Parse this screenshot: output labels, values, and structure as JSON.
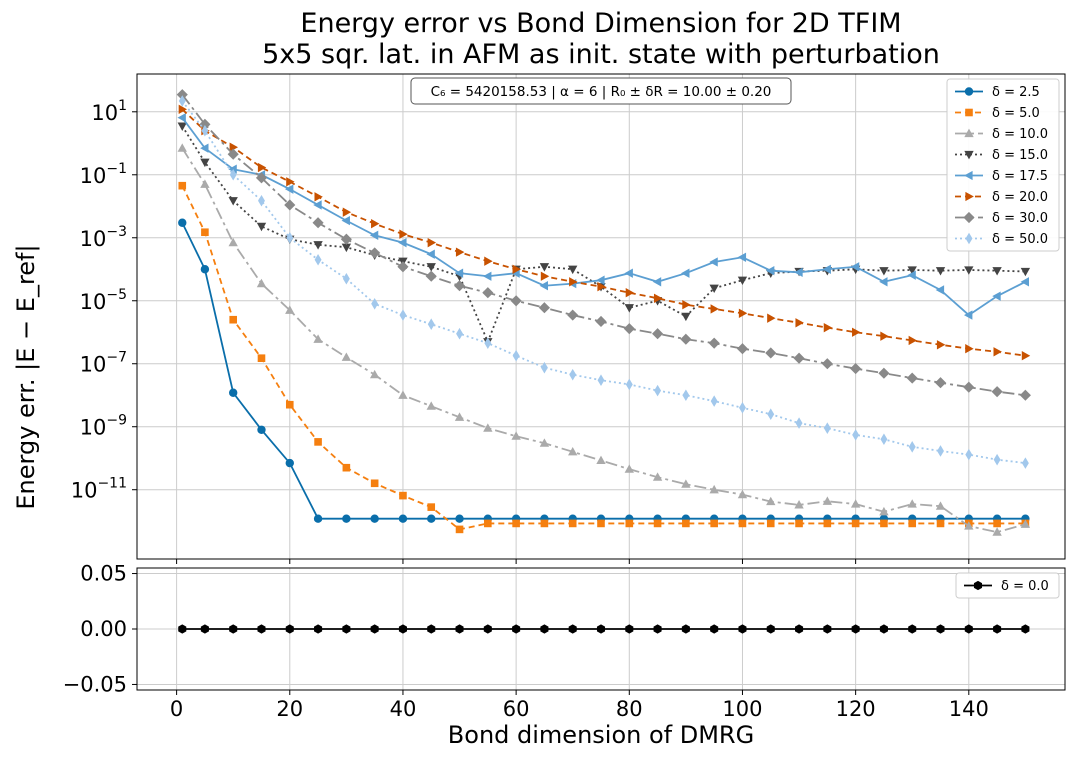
{
  "chart_data": {
    "type": "line",
    "title_lines": [
      "Energy error vs Bond Dimension for 2D TFIM",
      "5x5 sqr. lat. in AFM as init. state with perturbation"
    ],
    "xlabel": "Bond dimension of DMRG",
    "ylabel": "Energy err. |E − E_ref|",
    "annotation": "C₆ = 5420158.53 | α = 6 | R₀ ± δR = 10.00 ± 0.20",
    "x_ticks": [
      "0",
      "20",
      "40",
      "60",
      "80",
      "100",
      "120",
      "140"
    ],
    "xlim": [
      -7,
      157
    ],
    "grid": true,
    "legend_position": "top-right",
    "top_panel": {
      "yscale": "log",
      "ylim_log10": [
        -13.2,
        2.2
      ],
      "y_ticks": [
        {
          "exp": 1,
          "label": "10",
          "sup": "1"
        },
        {
          "exp": -1,
          "label": "10",
          "sup": "−1"
        },
        {
          "exp": -3,
          "label": "10",
          "sup": "−3"
        },
        {
          "exp": -5,
          "label": "10",
          "sup": "−5"
        },
        {
          "exp": -7,
          "label": "10",
          "sup": "−7"
        },
        {
          "exp": -9,
          "label": "10",
          "sup": "−9"
        },
        {
          "exp": -11,
          "label": "10",
          "sup": "−11"
        }
      ],
      "x": [
        1,
        5,
        10,
        15,
        20,
        25,
        30,
        35,
        40,
        45,
        50,
        55,
        60,
        65,
        70,
        75,
        80,
        85,
        90,
        95,
        100,
        105,
        110,
        115,
        120,
        125,
        130,
        135,
        140,
        145,
        150
      ],
      "series": [
        {
          "name": "δ = 2.5",
          "color": "#0a6eaa",
          "dash": "",
          "marker": "circle",
          "values": [
            0.003,
            0.0001,
            1.2e-08,
            8e-10,
            7e-11,
            1.2e-12,
            1.2e-12,
            1.2e-12,
            1.2e-12,
            1.2e-12,
            1.2e-12,
            1.2e-12,
            1.2e-12,
            1.2e-12,
            1.2e-12,
            1.2e-12,
            1.2e-12,
            1.2e-12,
            1.2e-12,
            1.2e-12,
            1.2e-12,
            1.2e-12,
            1.2e-12,
            1.2e-12,
            1.2e-12,
            1.2e-12,
            1.2e-12,
            1.2e-12,
            1.2e-12,
            1.2e-12,
            1.2e-12
          ]
        },
        {
          "name": "δ = 5.0",
          "color": "#f57f0f",
          "dash": "6,4",
          "marker": "square",
          "values": [
            0.045,
            0.0015,
            2.5e-06,
            1.5e-07,
            5e-09,
            3.3e-10,
            5e-11,
            1.6e-11,
            6.5e-12,
            2.8e-12,
            5.5e-13,
            8.5e-13,
            8.5e-13,
            8.5e-13,
            8.5e-13,
            8.5e-13,
            8.5e-13,
            8.5e-13,
            8.5e-13,
            8.5e-13,
            8.5e-13,
            8.5e-13,
            8.5e-13,
            8.5e-13,
            8.5e-13,
            8.5e-13,
            8.5e-13,
            8.5e-13,
            8.5e-13,
            8.5e-13,
            8.5e-13
          ]
        },
        {
          "name": "δ = 10.0",
          "color": "#aaaaaa",
          "dash": "12,4,3,4",
          "marker": "triangle-up",
          "values": [
            0.7,
            0.05,
            0.0007,
            3.5e-05,
            5e-06,
            6e-07,
            1.6e-07,
            4.5e-08,
            1e-08,
            4.5e-09,
            2e-09,
            9e-10,
            5e-10,
            3e-10,
            1.6e-10,
            8.5e-11,
            4.5e-11,
            2.5e-11,
            1.5e-11,
            1e-11,
            7e-12,
            4.2e-12,
            3.3e-12,
            4.3e-12,
            3.5e-12,
            2e-12,
            3.5e-12,
            3e-12,
            7e-13,
            4.5e-13,
            8e-13
          ]
        },
        {
          "name": "δ = 15.0",
          "color": "#444444",
          "dash": "2,3",
          "marker": "triangle-down",
          "values": [
            3.5,
            0.25,
            0.015,
            0.0023,
            0.0009,
            0.0006,
            0.0005,
            0.00028,
            0.00018,
            0.00012,
            6e-05,
            5e-07,
            0.0001,
            0.00012,
            0.0001,
            2.8e-05,
            6e-06,
            1e-05,
            3.2e-06,
            2.5e-05,
            4.5e-05,
            7.5e-05,
            8.5e-05,
            9e-05,
            0.0001,
            9e-05,
            9.5e-05,
            9e-05,
            9.5e-05,
            9e-05,
            8.5e-05
          ]
        },
        {
          "name": "δ = 17.5",
          "color": "#5c9fd2",
          "dash": "",
          "marker": "triangle-left",
          "values": [
            6.5,
            0.7,
            0.15,
            0.1,
            0.035,
            0.011,
            0.0035,
            0.0012,
            0.0007,
            0.0003,
            7.5e-05,
            6e-05,
            7.5e-05,
            3e-05,
            3.5e-05,
            4.5e-05,
            7.5e-05,
            4e-05,
            7.5e-05,
            0.00017,
            0.00024,
            9e-05,
            8e-05,
            0.0001,
            0.00012,
            4e-05,
            6.5e-05,
            2.2e-05,
            3.5e-06,
            1.4e-05,
            4e-05
          ]
        },
        {
          "name": "δ = 20.0",
          "color": "#c85200",
          "dash": "6,4",
          "marker": "triangle-right",
          "values": [
            12,
            2.5,
            0.75,
            0.17,
            0.06,
            0.02,
            0.0065,
            0.0028,
            0.0013,
            0.0007,
            0.00035,
            0.00018,
            0.0001,
            6e-05,
            4e-05,
            2.8e-05,
            1.8e-05,
            1.2e-05,
            7.5e-06,
            5.5e-06,
            4e-06,
            2.8e-06,
            2e-06,
            1.4e-06,
            1e-06,
            7.5e-07,
            5.5e-07,
            4e-07,
            3e-07,
            2.4e-07,
            1.8e-07
          ]
        },
        {
          "name": "δ = 30.0",
          "color": "#898989",
          "dash": "12,4,3,4",
          "marker": "diamond",
          "values": [
            35,
            4,
            0.45,
            0.08,
            0.011,
            0.003,
            0.0009,
            0.00033,
            0.00012,
            6e-05,
            3e-05,
            1.8e-05,
            1e-05,
            6e-06,
            3.5e-06,
            2.2e-06,
            1.3e-06,
            9e-07,
            6e-07,
            4.5e-07,
            3e-07,
            2.2e-07,
            1.5e-07,
            1e-07,
            7e-08,
            5e-08,
            3.5e-08,
            2.5e-08,
            1.8e-08,
            1.3e-08,
            1e-08
          ]
        },
        {
          "name": "δ = 50.0",
          "color": "#a2c8ec",
          "dash": "2,3",
          "marker": "thin-diamond",
          "values": [
            22,
            2.5,
            0.1,
            0.015,
            0.001,
            0.0002,
            5e-05,
            8e-06,
            3.5e-06,
            1.8e-06,
            9e-07,
            4.5e-07,
            1.8e-07,
            7.5e-08,
            4.5e-08,
            3e-08,
            2.2e-08,
            1.4e-08,
            1e-08,
            6.5e-09,
            4e-09,
            2.5e-09,
            1.3e-09,
            9e-10,
            5.5e-10,
            4e-10,
            2.3e-10,
            1.7e-10,
            1.3e-10,
            9e-11,
            7e-11
          ]
        }
      ]
    },
    "bottom_panel": {
      "yscale": "linear",
      "ylim": [
        -0.055,
        0.055
      ],
      "y_ticks": [
        "0.05",
        "0.00",
        "−0.05"
      ],
      "y_tick_values": [
        0.05,
        0.0,
        -0.05
      ],
      "x": [
        1,
        5,
        10,
        15,
        20,
        25,
        30,
        35,
        40,
        45,
        50,
        55,
        60,
        65,
        70,
        75,
        80,
        85,
        90,
        95,
        100,
        105,
        110,
        115,
        120,
        125,
        130,
        135,
        140,
        145,
        150
      ],
      "series": [
        {
          "name": "δ = 0.0",
          "color": "#000000",
          "dash": "",
          "marker": "hexagon",
          "values": [
            0,
            0,
            0,
            0,
            0,
            0,
            0,
            0,
            0,
            0,
            0,
            0,
            0,
            0,
            0,
            0,
            0,
            0,
            0,
            0,
            0,
            0,
            0,
            0,
            0,
            0,
            0,
            0,
            0,
            0,
            0
          ]
        }
      ]
    }
  }
}
